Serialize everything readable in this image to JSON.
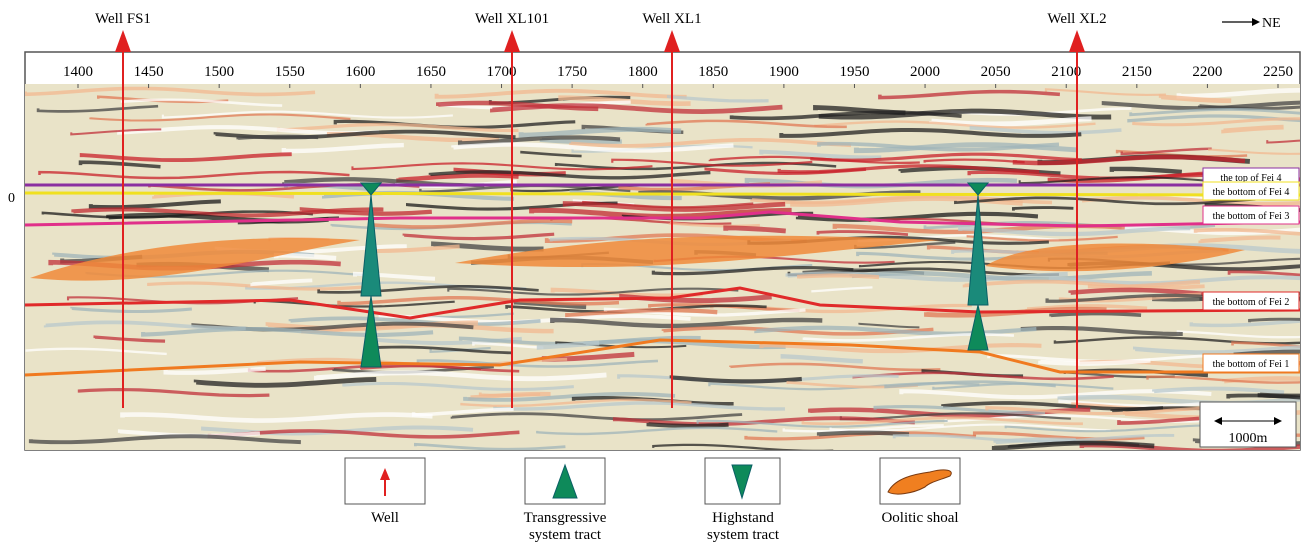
{
  "wells": [
    {
      "label": "Well FS1"
    },
    {
      "label": "Well XL101"
    },
    {
      "label": "Well XL1"
    },
    {
      "label": "Well XL2"
    }
  ],
  "axis": {
    "ticks": [
      1400,
      1450,
      1500,
      1550,
      1600,
      1650,
      1700,
      1750,
      1800,
      1850,
      1900,
      1950,
      2000,
      2050,
      2100,
      2150,
      2200,
      2250
    ],
    "depth_label": "0"
  },
  "horizons": [
    {
      "label": "the top of Fei 4"
    },
    {
      "label": "the bottom of Fei 4"
    },
    {
      "label": "the bottom of Fei 3"
    },
    {
      "label": "the bottom of Fei 2"
    },
    {
      "label": "the bottom of Fei 1"
    }
  ],
  "direction": {
    "label": "NE"
  },
  "scale_bar": {
    "label": "1000m"
  },
  "legend": [
    {
      "label": "Well"
    },
    {
      "label": "Transgressive\nsystem tract"
    },
    {
      "label": "Highstand\nsystem tract"
    },
    {
      "label": "Oolitic shoal"
    }
  ]
}
